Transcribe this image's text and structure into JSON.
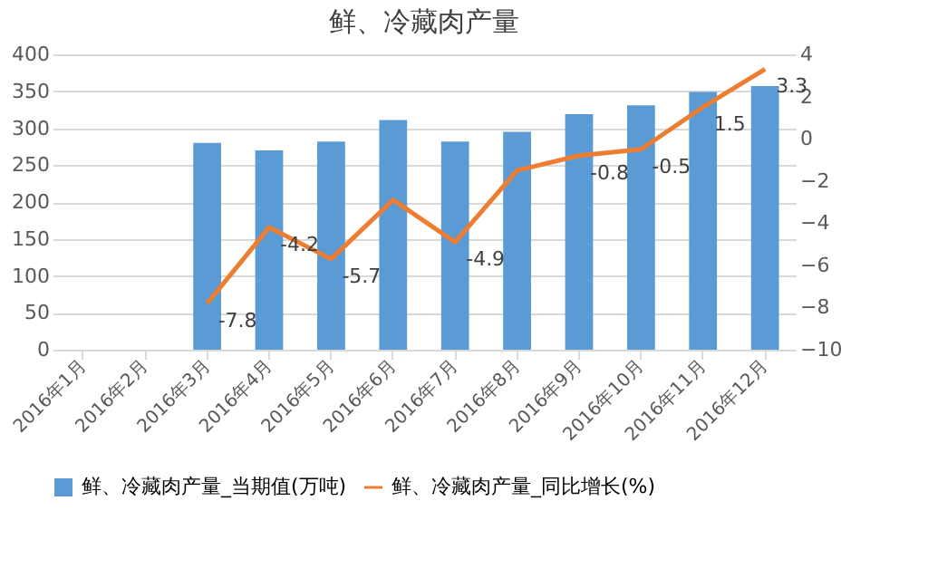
{
  "chart_data": {
    "type": "bar",
    "title": "鲜、冷藏肉产量",
    "categories": [
      "2016年1月",
      "2016年2月",
      "2016年3月",
      "2016年4月",
      "2016年5月",
      "2016年6月",
      "2016年7月",
      "2016年8月",
      "2016年9月",
      "2016年10月",
      "2016年11月",
      "2016年12月"
    ],
    "series": [
      {
        "name": "鲜、冷藏肉产量_当期值(万吨)",
        "color": "#5b9bd5",
        "values": [
          null,
          null,
          280,
          270,
          282,
          311,
          282,
          295,
          319,
          331,
          349,
          357
        ]
      },
      {
        "name": "鲜、冷藏肉产量_同比增长(%)",
        "type": "line",
        "axis": "y2",
        "color": "#ed7d31",
        "values": [
          null,
          null,
          -7.8,
          -4.2,
          -5.7,
          -2.9,
          -4.9,
          -1.5,
          -0.8,
          -0.5,
          1.5,
          3.3
        ],
        "value_labels": [
          null,
          null,
          "-7.8",
          "-4.2",
          "-5.7",
          null,
          "-4.9",
          null,
          "-0.8",
          "-0.5",
          "1.5",
          "3.3"
        ]
      }
    ],
    "ylim": [
      0,
      400
    ],
    "yticks": [
      0,
      50,
      100,
      150,
      200,
      250,
      300,
      350,
      400
    ],
    "y2lim": [
      -10,
      4
    ],
    "y2ticks": [
      -10,
      -8,
      -6,
      -4,
      -2,
      0,
      2,
      4
    ],
    "grid": "y",
    "legend": "bottom",
    "marker": "none"
  }
}
